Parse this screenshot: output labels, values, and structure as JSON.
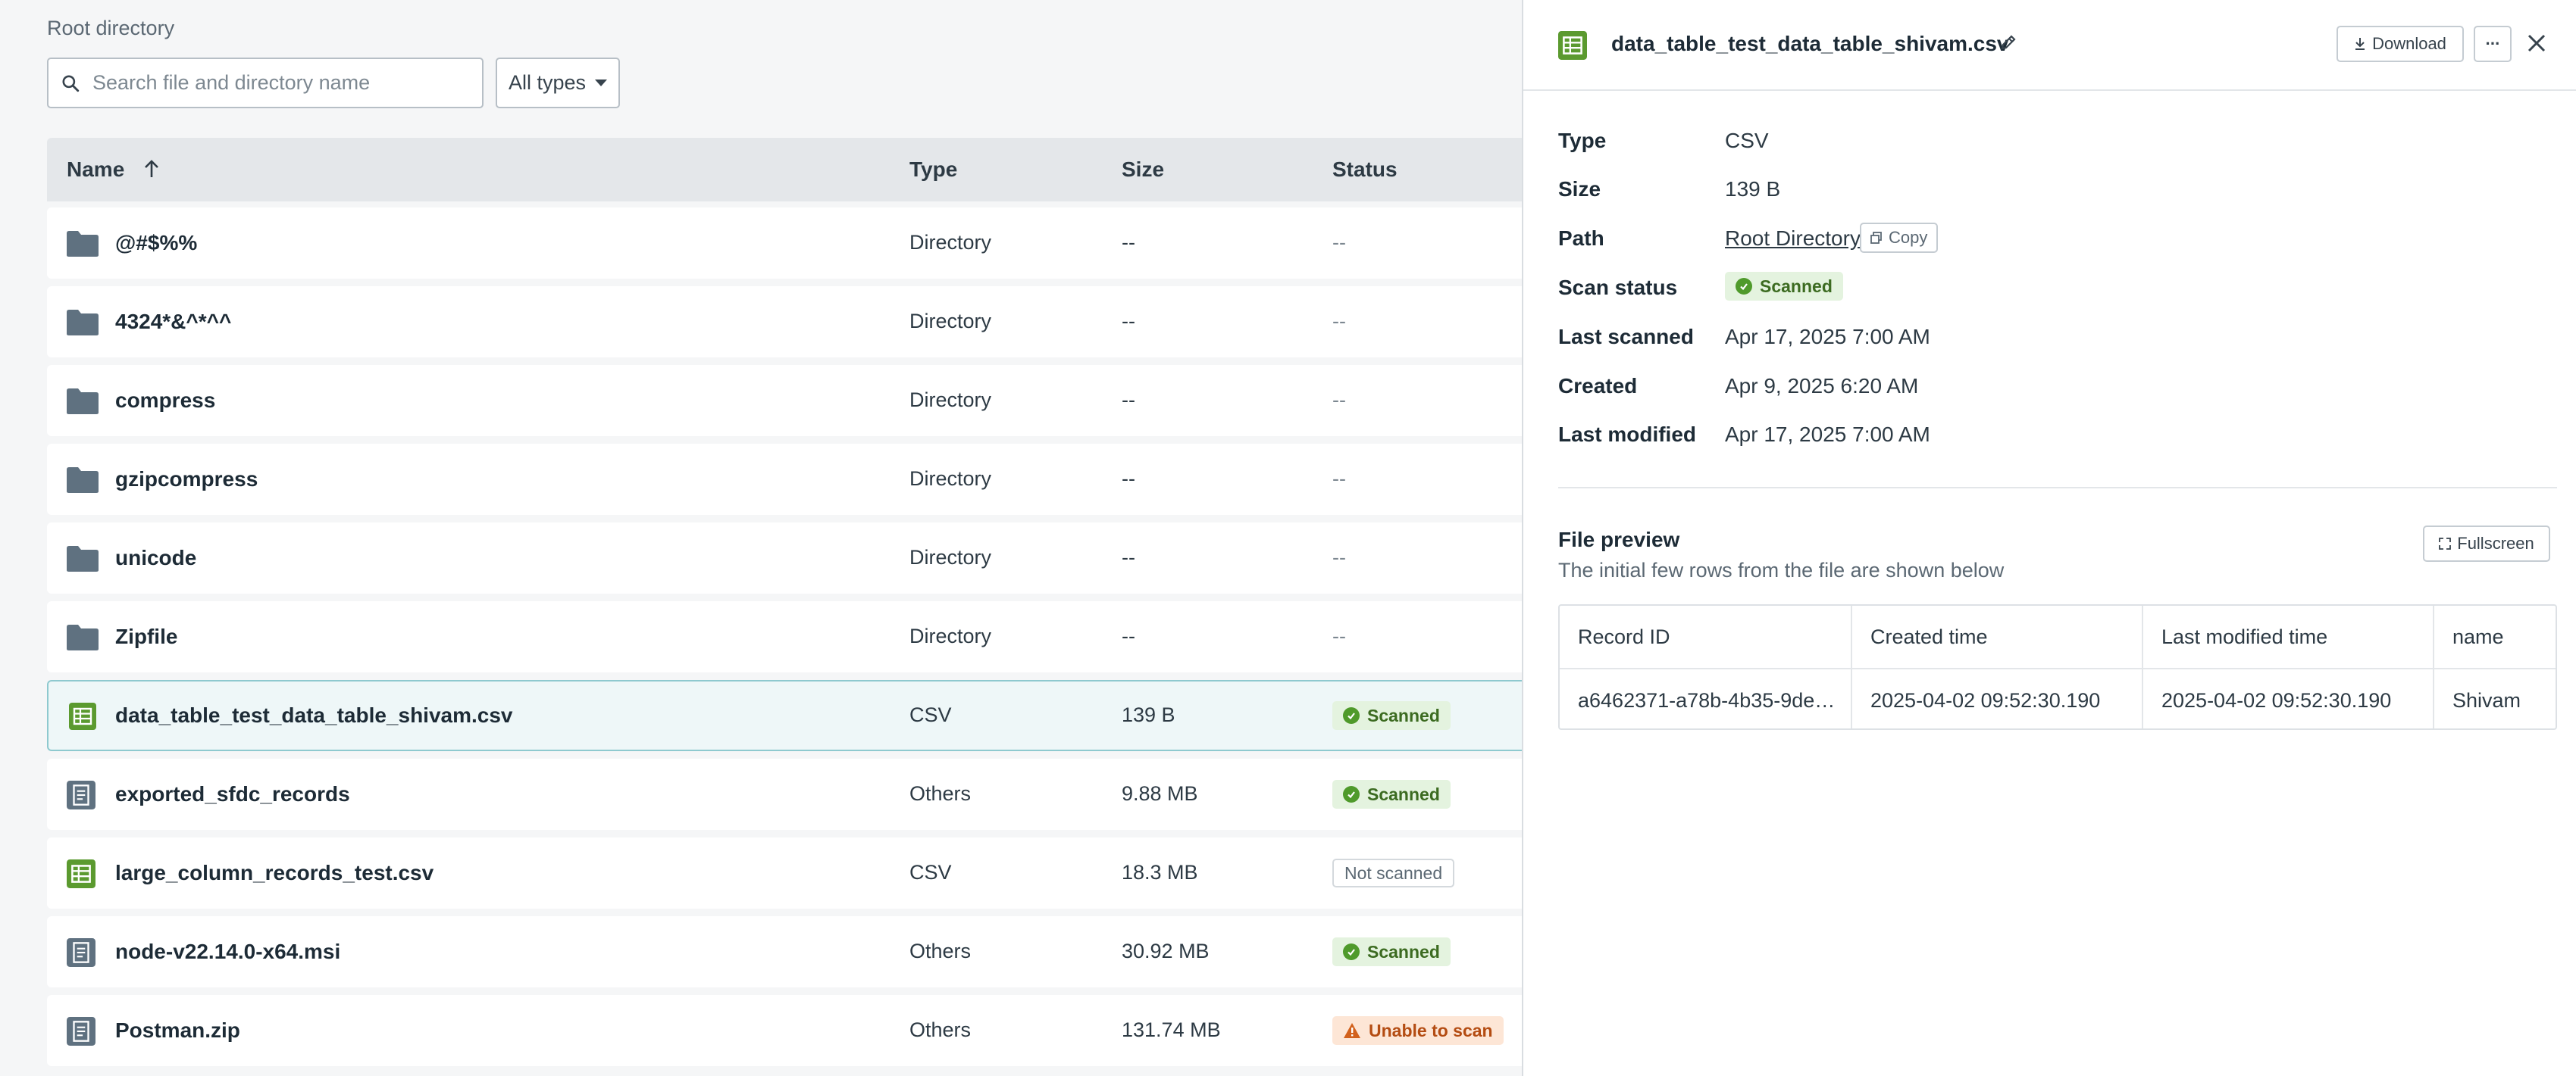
{
  "breadcrumb": "Root directory",
  "search": {
    "placeholder": "Search file and directory name",
    "value": ""
  },
  "type_filter": {
    "selected": "All types"
  },
  "table": {
    "headers": {
      "name": "Name",
      "type": "Type",
      "size": "Size",
      "status": "Status"
    },
    "sort": {
      "column": "Name",
      "direction": "ascending"
    },
    "rows": [
      {
        "name": "@#$%%",
        "type": "Directory",
        "size": "--",
        "status": "--",
        "icon": "folder-icon"
      },
      {
        "name": "4324*&^*^^",
        "type": "Directory",
        "size": "--",
        "status": "--",
        "icon": "folder-icon"
      },
      {
        "name": "compress",
        "type": "Directory",
        "size": "--",
        "status": "--",
        "icon": "folder-icon"
      },
      {
        "name": "gzipcompress",
        "type": "Directory",
        "size": "--",
        "status": "--",
        "icon": "folder-icon"
      },
      {
        "name": "unicode",
        "type": "Directory",
        "size": "--",
        "status": "--",
        "icon": "folder-icon"
      },
      {
        "name": "Zipfile",
        "type": "Directory",
        "size": "--",
        "status": "--",
        "icon": "folder-icon"
      },
      {
        "name": "data_table_test_data_table_shivam.csv",
        "type": "CSV",
        "size": "139 B",
        "status": "Scanned",
        "icon": "csv-file-icon",
        "selected": true
      },
      {
        "name": "exported_sfdc_records",
        "type": "Others",
        "size": "9.88 MB",
        "status": "Scanned",
        "icon": "document-icon"
      },
      {
        "name": "large_column_records_test.csv",
        "type": "CSV",
        "size": "18.3 MB",
        "status": "Not scanned",
        "icon": "csv-file-icon"
      },
      {
        "name": "node-v22.14.0-x64.msi",
        "type": "Others",
        "size": "30.92 MB",
        "status": "Scanned",
        "icon": "document-icon"
      },
      {
        "name": "Postman.zip",
        "type": "Others",
        "size": "131.74 MB",
        "status": "Unable to scan",
        "icon": "document-icon"
      }
    ]
  },
  "panel": {
    "title": "data_table_test_data_table_shivam.csv",
    "download_label": "Download",
    "more_label": "···",
    "details": {
      "type_label": "Type",
      "type_value": "CSV",
      "size_label": "Size",
      "size_value": "139 B",
      "path_label": "Path",
      "path_value": "Root Directory",
      "copy_label": "Copy",
      "scan_label": "Scan status",
      "scan_value": "Scanned",
      "last_scanned_label": "Last scanned",
      "last_scanned_value": "Apr 17, 2025 7:00 AM",
      "created_label": "Created",
      "created_value": "Apr 9, 2025 6:20 AM",
      "last_modified_label": "Last modified",
      "last_modified_value": "Apr 17, 2025 7:00 AM"
    },
    "preview": {
      "title": "File preview",
      "subtitle": "The initial few rows from the file are shown below",
      "fullscreen_label": "Fullscreen",
      "columns": [
        "Record ID",
        "Created time",
        "Last modified time",
        "name"
      ],
      "rows": [
        [
          "a6462371-a78b-4b35-9de…",
          "2025-04-02 09:52:30.190",
          "2025-04-02 09:52:30.190",
          "Shivam"
        ]
      ]
    }
  },
  "colors": {
    "accent_green": "#5b9a2f",
    "scanned_bg": "#e4f3df",
    "warn_bg": "#fde6d6",
    "selected_row_border": "#8ec9cf",
    "folder_gray": "#5f7180"
  }
}
